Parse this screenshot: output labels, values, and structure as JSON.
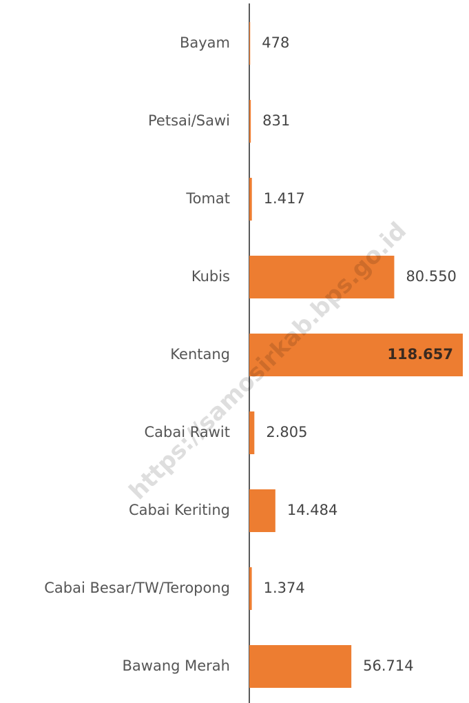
{
  "chart_data": {
    "type": "bar",
    "orientation": "horizontal",
    "categories": [
      "Bayam",
      "Petsai/Sawi",
      "Tomat",
      "Kubis",
      "Kentang",
      "Cabai Rawit",
      "Cabai Keriting",
      "Cabai Besar/TW/Teropong",
      "Bawang Merah"
    ],
    "values": [
      478,
      831,
      1417,
      80550,
      118657,
      2805,
      14484,
      1374,
      56714
    ],
    "value_labels": [
      "478",
      "831",
      "1.417",
      "80.550",
      "118.657",
      "2.805",
      "14.484",
      "1.374",
      "56.714"
    ],
    "color": "#ED7D31",
    "watermark": "https://samosirkab.bps.go.id"
  }
}
